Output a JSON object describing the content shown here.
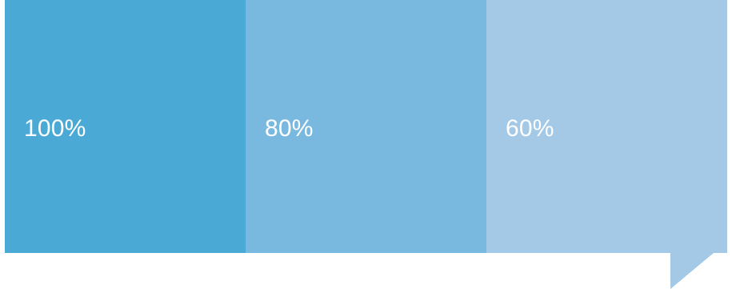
{
  "swatches": [
    {
      "label": "100%",
      "color": "#4ba9d5"
    },
    {
      "label": "80%",
      "color": "#7ab9df"
    },
    {
      "label": "60%",
      "color": "#a3c9e6"
    }
  ],
  "tail": {
    "color": "#a3c9e6"
  }
}
